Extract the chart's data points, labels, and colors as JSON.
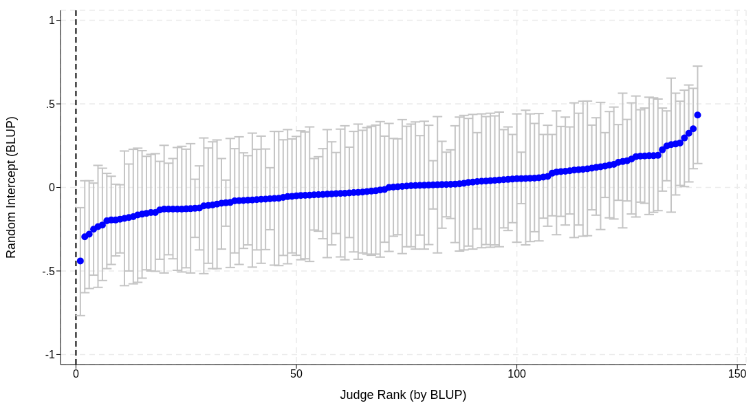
{
  "chart_data": {
    "type": "scatter",
    "xlabel": "Judge Rank (by BLUP)",
    "ylabel": "Random Intercept (BLUP)",
    "x": [
      1,
      2,
      3,
      4,
      5,
      6,
      7,
      8,
      9,
      10,
      11,
      12,
      13,
      14,
      15,
      16,
      17,
      18,
      19,
      20,
      21,
      22,
      23,
      24,
      25,
      26,
      27,
      28,
      29,
      30,
      31,
      32,
      33,
      34,
      35,
      36,
      37,
      38,
      39,
      40,
      41,
      42,
      43,
      44,
      45,
      46,
      47,
      48,
      49,
      50,
      51,
      52,
      53,
      54,
      55,
      56,
      57,
      58,
      59,
      60,
      61,
      62,
      63,
      64,
      65,
      66,
      67,
      68,
      69,
      70,
      71,
      72,
      73,
      74,
      75,
      76,
      77,
      78,
      79,
      80,
      81,
      82,
      83,
      84,
      85,
      86,
      87,
      88,
      89,
      90,
      91,
      92,
      93,
      94,
      95,
      96,
      97,
      98,
      99,
      100,
      101,
      102,
      103,
      104,
      105,
      106,
      107,
      108,
      109,
      110,
      111,
      112,
      113,
      114,
      115,
      116,
      117,
      118,
      119,
      120,
      121,
      122,
      123,
      124,
      125,
      126,
      127,
      128,
      129,
      130,
      131,
      132,
      133,
      134,
      135,
      136,
      137,
      138,
      139,
      140,
      141
    ],
    "series": [
      {
        "color": "#0000ff",
        "values": [
          -0.44,
          -0.295,
          -0.28,
          -0.25,
          -0.235,
          -0.225,
          -0.2,
          -0.195,
          -0.195,
          -0.19,
          -0.185,
          -0.18,
          -0.175,
          -0.165,
          -0.16,
          -0.155,
          -0.15,
          -0.15,
          -0.135,
          -0.13,
          -0.13,
          -0.13,
          -0.13,
          -0.13,
          -0.128,
          -0.127,
          -0.125,
          -0.123,
          -0.11,
          -0.108,
          -0.105,
          -0.1,
          -0.095,
          -0.092,
          -0.09,
          -0.08,
          -0.079,
          -0.078,
          -0.076,
          -0.075,
          -0.073,
          -0.071,
          -0.07,
          -0.068,
          -0.066,
          -0.065,
          -0.06,
          -0.055,
          -0.053,
          -0.05,
          -0.048,
          -0.047,
          -0.046,
          -0.044,
          -0.043,
          -0.042,
          -0.04,
          -0.039,
          -0.037,
          -0.036,
          -0.035,
          -0.033,
          -0.031,
          -0.03,
          -0.028,
          -0.025,
          -0.022,
          -0.02,
          -0.015,
          -0.012,
          0,
          0.002,
          0.004,
          0.006,
          0.008,
          0.01,
          0.011,
          0.012,
          0.013,
          0.014,
          0.015,
          0.016,
          0.017,
          0.018,
          0.019,
          0.02,
          0.022,
          0.025,
          0.03,
          0.032,
          0.035,
          0.037,
          0.038,
          0.04,
          0.042,
          0.044,
          0.046,
          0.048,
          0.05,
          0.052,
          0.053,
          0.054,
          0.055,
          0.056,
          0.058,
          0.062,
          0.066,
          0.085,
          0.092,
          0.095,
          0.097,
          0.1,
          0.104,
          0.106,
          0.108,
          0.111,
          0.115,
          0.12,
          0.124,
          0.128,
          0.134,
          0.138,
          0.15,
          0.155,
          0.16,
          0.17,
          0.184,
          0.187,
          0.188,
          0.19,
          0.19,
          0.192,
          0.225,
          0.248,
          0.256,
          0.26,
          0.266,
          0.296,
          0.324,
          0.351,
          0.433
        ],
        "errors": [
          [
            -0.767,
            -0.121
          ],
          [
            -0.63,
            0.04
          ],
          [
            -0.605,
            0.04
          ],
          [
            -0.525,
            0.026
          ],
          [
            -0.598,
            0.132
          ],
          [
            -0.557,
            0.115
          ],
          [
            -0.486,
            0.084
          ],
          [
            -0.461,
            0.067
          ],
          [
            -0.41,
            0.019
          ],
          [
            -0.392,
            0.016
          ],
          [
            -0.588,
            0.218
          ],
          [
            -0.5,
            0.14
          ],
          [
            -0.577,
            0.228
          ],
          [
            -0.568,
            0.235
          ],
          [
            -0.543,
            0.22
          ],
          [
            -0.493,
            0.186
          ],
          [
            -0.5,
            0.198
          ],
          [
            -0.502,
            0.202
          ],
          [
            -0.43,
            0.156
          ],
          [
            -0.512,
            0.252
          ],
          [
            -0.403,
            0.145
          ],
          [
            -0.427,
            0.173
          ],
          [
            -0.496,
            0.239
          ],
          [
            -0.506,
            0.246
          ],
          [
            -0.481,
            0.229
          ],
          [
            -0.512,
            0.262
          ],
          [
            -0.299,
            0.049
          ],
          [
            -0.374,
            0.129
          ],
          [
            -0.516,
            0.296
          ],
          [
            -0.454,
            0.236
          ],
          [
            -0.486,
            0.273
          ],
          [
            -0.486,
            0.284
          ],
          [
            -0.369,
            0.173
          ],
          [
            -0.232,
            0.044
          ],
          [
            -0.479,
            0.293
          ],
          [
            -0.392,
            0.232
          ],
          [
            -0.461,
            0.303
          ],
          [
            -0.365,
            0.207
          ],
          [
            -0.344,
            0.19
          ],
          [
            -0.477,
            0.325
          ],
          [
            -0.374,
            0.228
          ],
          [
            -0.454,
            0.307
          ],
          [
            -0.372,
            0.23
          ],
          [
            -0.253,
            0.118
          ],
          [
            -0.465,
            0.335
          ],
          [
            -0.468,
            0.335
          ],
          [
            -0.407,
            0.285
          ],
          [
            -0.457,
            0.346
          ],
          [
            -0.392,
            0.29
          ],
          [
            -0.406,
            0.305
          ],
          [
            -0.433,
            0.339
          ],
          [
            -0.427,
            0.332
          ],
          [
            -0.443,
            0.362
          ],
          [
            -0.255,
            0.173
          ],
          [
            -0.262,
            0.184
          ],
          [
            -0.307,
            0.232
          ],
          [
            -0.42,
            0.346
          ],
          [
            -0.344,
            0.273
          ],
          [
            -0.276,
            0.209
          ],
          [
            -0.416,
            0.349
          ],
          [
            -0.433,
            0.369
          ],
          [
            -0.3,
            0.241
          ],
          [
            -0.386,
            0.335
          ],
          [
            -0.43,
            0.379
          ],
          [
            -0.392,
            0.342
          ],
          [
            -0.399,
            0.358
          ],
          [
            -0.406,
            0.366
          ],
          [
            -0.399,
            0.373
          ],
          [
            -0.417,
            0.394
          ],
          [
            -0.328,
            0.307
          ],
          [
            -0.383,
            0.383
          ],
          [
            -0.292,
            0.293
          ],
          [
            -0.283,
            0.291
          ],
          [
            -0.396,
            0.406
          ],
          [
            -0.355,
            0.366
          ],
          [
            -0.355,
            0.379
          ],
          [
            -0.369,
            0.392
          ],
          [
            -0.285,
            0.31
          ],
          [
            -0.369,
            0.396
          ],
          [
            -0.342,
            0.372
          ],
          [
            -0.129,
            0.16
          ],
          [
            -0.392,
            0.424
          ],
          [
            -0.244,
            0.276
          ],
          [
            -0.176,
            0.211
          ],
          [
            -0.186,
            0.225
          ],
          [
            -0.33,
            0.369
          ],
          [
            -0.381,
            0.421
          ],
          [
            -0.374,
            0.431
          ],
          [
            -0.351,
            0.413
          ],
          [
            -0.369,
            0.437
          ],
          [
            -0.248,
            0.328
          ],
          [
            -0.361,
            0.44
          ],
          [
            -0.342,
            0.424
          ],
          [
            -0.358,
            0.444
          ],
          [
            -0.344,
            0.428
          ],
          [
            -0.355,
            0.451
          ],
          [
            -0.242,
            0.346
          ],
          [
            -0.258,
            0.362
          ],
          [
            -0.211,
            0.317
          ],
          [
            -0.328,
            0.44
          ],
          [
            -0.097,
            0.211
          ],
          [
            -0.344,
            0.462
          ],
          [
            -0.324,
            0.44
          ],
          [
            -0.265,
            0.383
          ],
          [
            -0.32,
            0.442
          ],
          [
            -0.184,
            0.317
          ],
          [
            -0.232,
            0.372
          ],
          [
            -0.17,
            0.317
          ],
          [
            -0.283,
            0.458
          ],
          [
            -0.173,
            0.365
          ],
          [
            -0.225,
            0.421
          ],
          [
            -0.159,
            0.362
          ],
          [
            -0.3,
            0.506
          ],
          [
            -0.225,
            0.444
          ],
          [
            -0.292,
            0.516
          ],
          [
            -0.289,
            0.517
          ],
          [
            -0.134,
            0.373
          ],
          [
            -0.166,
            0.417
          ],
          [
            -0.252,
            0.509
          ],
          [
            -0.06,
            0.328
          ],
          [
            -0.182,
            0.454
          ],
          [
            -0.189,
            0.481
          ],
          [
            -0.077,
            0.376
          ],
          [
            -0.242,
            0.564
          ],
          [
            -0.081,
            0.407
          ],
          [
            -0.159,
            0.506
          ],
          [
            -0.177,
            0.547
          ],
          [
            -0.088,
            0.465
          ],
          [
            -0.095,
            0.475
          ],
          [
            -0.162,
            0.54
          ],
          [
            -0.149,
            0.536
          ],
          [
            -0.139,
            0.529
          ],
          [
            -0.022,
            0.475
          ],
          [
            0.04,
            0.458
          ],
          [
            -0.148,
            0.654
          ],
          [
            -0.045,
            0.564
          ],
          [
            0.012,
            0.516
          ],
          [
            0.005,
            0.582
          ],
          [
            0.033,
            0.613
          ],
          [
            0.112,
            0.593
          ],
          [
            0.143,
            0.726
          ]
        ]
      }
    ],
    "xlim": [
      -3.5,
      152
    ],
    "xticks": [
      0,
      50,
      100,
      150
    ],
    "ylim": [
      -1.06,
      1.06
    ],
    "yticks": [
      {
        "value": -1,
        "label": "-1"
      },
      {
        "value": -0.5,
        "label": "-.5"
      },
      {
        "value": 0,
        "label": "0"
      },
      {
        "value": 0.5,
        "label": ".5"
      },
      {
        "value": 1,
        "label": "1"
      }
    ],
    "ref_lines": [
      {
        "axis": "x",
        "value": 0,
        "color": "#000000",
        "line_style": "dashed"
      }
    ],
    "grid": true,
    "marker": "circle"
  }
}
